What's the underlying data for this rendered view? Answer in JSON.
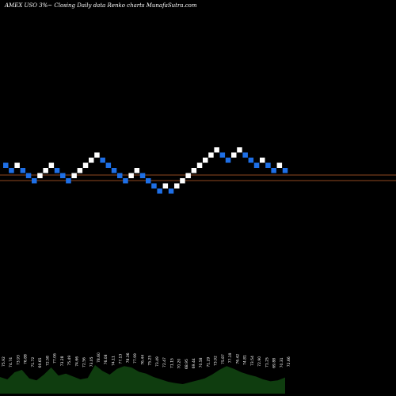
{
  "chart_data": {
    "type": "renko",
    "title": "AMEX  USO 3%~  Closing Daily data  Renko  charts MunafaSutra.com",
    "colors": {
      "up": "#ffffff",
      "down": "#1e6fe6",
      "background": "#000000",
      "reference_lines": "#c0622a",
      "volume": "#0f3d0f",
      "label": "#ffffff"
    },
    "reference_lines": [
      {
        "name": "upper"
      },
      {
        "name": "lower"
      }
    ],
    "bricks": [
      {
        "dir": "down",
        "level": 5
      },
      {
        "dir": "down",
        "level": 4
      },
      {
        "dir": "up",
        "level": 5
      },
      {
        "dir": "down",
        "level": 4
      },
      {
        "dir": "down",
        "level": 3
      },
      {
        "dir": "down",
        "level": 2
      },
      {
        "dir": "up",
        "level": 3
      },
      {
        "dir": "up",
        "level": 4
      },
      {
        "dir": "up",
        "level": 5
      },
      {
        "dir": "down",
        "level": 4
      },
      {
        "dir": "down",
        "level": 3
      },
      {
        "dir": "down",
        "level": 2
      },
      {
        "dir": "up",
        "level": 3
      },
      {
        "dir": "up",
        "level": 4
      },
      {
        "dir": "up",
        "level": 5
      },
      {
        "dir": "up",
        "level": 6
      },
      {
        "dir": "up",
        "level": 7
      },
      {
        "dir": "down",
        "level": 6
      },
      {
        "dir": "down",
        "level": 5
      },
      {
        "dir": "down",
        "level": 4
      },
      {
        "dir": "down",
        "level": 3
      },
      {
        "dir": "down",
        "level": 2
      },
      {
        "dir": "up",
        "level": 3
      },
      {
        "dir": "up",
        "level": 4
      },
      {
        "dir": "down",
        "level": 3
      },
      {
        "dir": "down",
        "level": 2
      },
      {
        "dir": "down",
        "level": 1
      },
      {
        "dir": "down",
        "level": 0
      },
      {
        "dir": "up",
        "level": 1
      },
      {
        "dir": "down",
        "level": 0
      },
      {
        "dir": "up",
        "level": 1
      },
      {
        "dir": "up",
        "level": 2
      },
      {
        "dir": "up",
        "level": 3
      },
      {
        "dir": "up",
        "level": 4
      },
      {
        "dir": "up",
        "level": 5
      },
      {
        "dir": "up",
        "level": 6
      },
      {
        "dir": "up",
        "level": 7
      },
      {
        "dir": "up",
        "level": 8
      },
      {
        "dir": "down",
        "level": 7
      },
      {
        "dir": "down",
        "level": 6
      },
      {
        "dir": "up",
        "level": 7
      },
      {
        "dir": "up",
        "level": 8
      },
      {
        "dir": "down",
        "level": 7
      },
      {
        "dir": "down",
        "level": 6
      },
      {
        "dir": "down",
        "level": 5
      },
      {
        "dir": "up",
        "level": 6
      },
      {
        "dir": "down",
        "level": 5
      },
      {
        "dir": "down",
        "level": 4
      },
      {
        "dir": "up",
        "level": 5
      },
      {
        "dir": "down",
        "level": 4
      }
    ],
    "volume_labels": [
      "75.92",
      "74.74",
      "73.93",
      "76.88",
      "71.72",
      "69.65",
      "72.58",
      "77.06",
      "73.28",
      "75.49",
      "74.66",
      "72.56",
      "73.05",
      "78.60",
      "76.08",
      "74.11",
      "77.13",
      "78.36",
      "77.99",
      "76.44",
      "75.25",
      "73.49",
      "72.47",
      "71.15",
      "70.20",
      "68.95",
      "69.44",
      "70.58",
      "71.29",
      "73.92",
      "75.87",
      "77.19",
      "76.42",
      "74.81",
      "73.54",
      "72.90",
      "71.25",
      "69.88",
      "70.31",
      "72.66"
    ],
    "volume_values": [
      0.35,
      0.3,
      0.45,
      0.5,
      0.32,
      0.28,
      0.4,
      0.55,
      0.38,
      0.42,
      0.36,
      0.3,
      0.33,
      0.6,
      0.48,
      0.4,
      0.52,
      0.58,
      0.55,
      0.46,
      0.42,
      0.35,
      0.3,
      0.25,
      0.22,
      0.2,
      0.24,
      0.28,
      0.32,
      0.4,
      0.5,
      0.58,
      0.52,
      0.45,
      0.4,
      0.36,
      0.3,
      0.26,
      0.28,
      0.34
    ]
  }
}
